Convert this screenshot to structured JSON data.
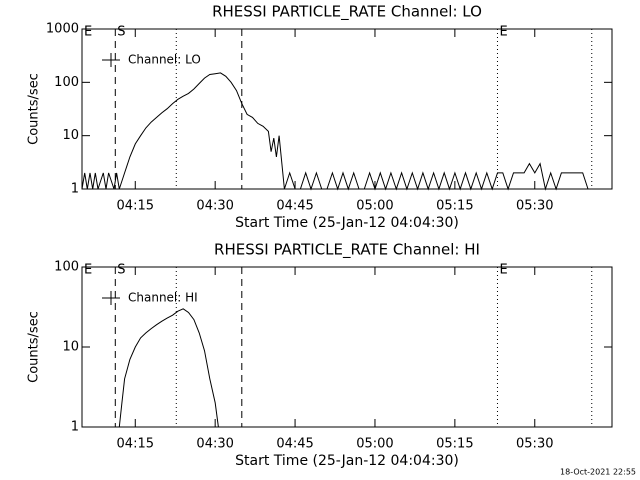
{
  "chart_data": [
    {
      "type": "line",
      "title": "RHESSI PARTICLE_RATE Channel: LO",
      "xlabel": "Start Time (25-Jan-12 04:04:30)",
      "ylabel": "Counts/sec",
      "log_scale": true,
      "legend": "upper left",
      "xlim": [
        5,
        104.5
      ],
      "xticks": [
        {
          "value": 15,
          "label": "04:15"
        },
        {
          "value": 30,
          "label": "04:30"
        },
        {
          "value": 45,
          "label": "04:45"
        },
        {
          "value": 60,
          "label": "05:00"
        },
        {
          "value": 75,
          "label": "05:15"
        },
        {
          "value": 90,
          "label": "05:30"
        }
      ],
      "ylim": [
        1,
        1000
      ],
      "yticks": [
        1,
        10,
        100,
        1000
      ],
      "vlines": [
        {
          "x": 5,
          "style": "none",
          "label": "E"
        },
        {
          "x": 11.25,
          "style": "dashed",
          "label": "S"
        },
        {
          "x": 22.7,
          "style": "dotted"
        },
        {
          "x": 35,
          "style": "dashed"
        },
        {
          "x": 83,
          "style": "dotted",
          "label": "E"
        },
        {
          "x": 100.7,
          "style": "dotted"
        }
      ],
      "series": [
        {
          "name": "Channel: LO",
          "color": "#000000",
          "x": [
            5,
            5.5,
            6,
            6.5,
            7,
            7.5,
            8,
            9,
            9.5,
            10,
            11,
            11.5,
            12,
            13,
            14,
            15,
            16,
            17,
            18,
            19,
            20,
            21,
            22,
            23,
            24,
            25,
            26,
            27,
            28,
            29,
            30,
            31,
            32,
            33,
            34,
            35,
            36,
            37,
            38,
            39,
            40,
            40.5,
            41,
            41.5,
            42,
            43,
            44,
            45,
            46,
            47,
            48,
            49,
            50,
            51,
            52,
            53,
            54,
            55,
            56,
            57,
            58,
            59,
            60,
            61,
            62,
            63,
            64,
            65,
            66,
            67,
            68,
            69,
            70,
            71,
            72,
            73,
            74,
            75,
            76,
            77,
            78,
            79,
            80,
            81,
            82,
            83,
            84,
            85,
            86,
            87,
            88,
            89,
            90,
            91,
            92,
            93,
            94,
            95,
            96,
            97,
            98,
            99,
            100
          ],
          "values": [
            1,
            2,
            1,
            2,
            1,
            2,
            1,
            2,
            1,
            2,
            1,
            2,
            1,
            2,
            4,
            7,
            10,
            14,
            18,
            22,
            27,
            32,
            40,
            48,
            55,
            62,
            75,
            95,
            120,
            140,
            145,
            150,
            130,
            100,
            70,
            40,
            25,
            22,
            17,
            15,
            12,
            5,
            9,
            4,
            10,
            1,
            2,
            1,
            1,
            2,
            1,
            2,
            1,
            1,
            2,
            1,
            2,
            1,
            2,
            1,
            1,
            2,
            1,
            2,
            1,
            2,
            1,
            2,
            1,
            2,
            1,
            2,
            1,
            2,
            1,
            2,
            1,
            2,
            1,
            2,
            1,
            2,
            1,
            2,
            1,
            2,
            2,
            1,
            2,
            2,
            2,
            3,
            2,
            3,
            1,
            2,
            1,
            2,
            2,
            2,
            2,
            2,
            1
          ]
        }
      ]
    },
    {
      "type": "line",
      "title": "RHESSI PARTICLE_RATE Channel: HI",
      "xlabel": "Start Time (25-Jan-12 04:04:30)",
      "ylabel": "Counts/sec",
      "log_scale": true,
      "legend": "upper left",
      "xlim": [
        5,
        104.5
      ],
      "xticks": [
        {
          "value": 15,
          "label": "04:15"
        },
        {
          "value": 30,
          "label": "04:30"
        },
        {
          "value": 45,
          "label": "04:45"
        },
        {
          "value": 60,
          "label": "05:00"
        },
        {
          "value": 75,
          "label": "05:15"
        },
        {
          "value": 90,
          "label": "05:30"
        }
      ],
      "ylim": [
        1,
        100
      ],
      "yticks": [
        1,
        10,
        100
      ],
      "vlines": [
        {
          "x": 5,
          "style": "none",
          "label": "E"
        },
        {
          "x": 11.25,
          "style": "dashed",
          "label": "S"
        },
        {
          "x": 22.7,
          "style": "dotted"
        },
        {
          "x": 35,
          "style": "dashed"
        },
        {
          "x": 83,
          "style": "dotted",
          "label": "E"
        },
        {
          "x": 100.7,
          "style": "dotted"
        }
      ],
      "series": [
        {
          "name": "Channel: HI",
          "color": "#000000",
          "x": [
            12,
            12.5,
            13,
            14,
            15,
            16,
            17,
            18,
            19,
            20,
            21,
            22,
            23,
            24,
            25,
            26,
            27,
            28,
            29,
            30,
            30.6
          ],
          "values": [
            1,
            2,
            4,
            7,
            10,
            13,
            15,
            17,
            19,
            21,
            23,
            25,
            28,
            30,
            27,
            22,
            15,
            9,
            4,
            2,
            1
          ]
        }
      ]
    }
  ],
  "footer": "18-Oct-2021 22:55"
}
